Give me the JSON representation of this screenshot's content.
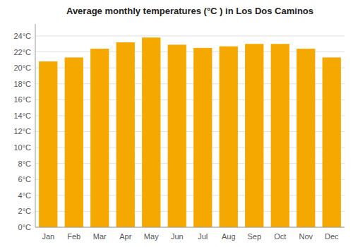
{
  "chart_data": {
    "type": "bar",
    "title": "Average monthly temperatures (°C ) in Los Dos Caminos",
    "categories": [
      "Jan",
      "Feb",
      "Mar",
      "Apr",
      "May",
      "Jun",
      "Jul",
      "Aug",
      "Sep",
      "Oct",
      "Nov",
      "Dec"
    ],
    "values": [
      20.8,
      21.3,
      22.4,
      23.2,
      23.8,
      22.9,
      22.5,
      22.7,
      23.0,
      23.0,
      22.4,
      21.3
    ],
    "color": "#F5A800",
    "ylim": [
      0,
      25.5
    ],
    "yticks": [
      {
        "value": 0,
        "label": "0°C"
      },
      {
        "value": 2,
        "label": "2°C"
      },
      {
        "value": 4,
        "label": "4°C"
      },
      {
        "value": 6,
        "label": "6°C"
      },
      {
        "value": 8,
        "label": "8°C"
      },
      {
        "value": 10,
        "label": "10°C"
      },
      {
        "value": 12,
        "label": "12°C"
      },
      {
        "value": 14,
        "label": "14°C"
      },
      {
        "value": 16,
        "label": "16°C"
      },
      {
        "value": 18,
        "label": "18°C"
      },
      {
        "value": 20,
        "label": "20°C"
      },
      {
        "value": 22,
        "label": "22°C"
      },
      {
        "value": 24,
        "label": "24°C"
      }
    ],
    "grid": true
  }
}
